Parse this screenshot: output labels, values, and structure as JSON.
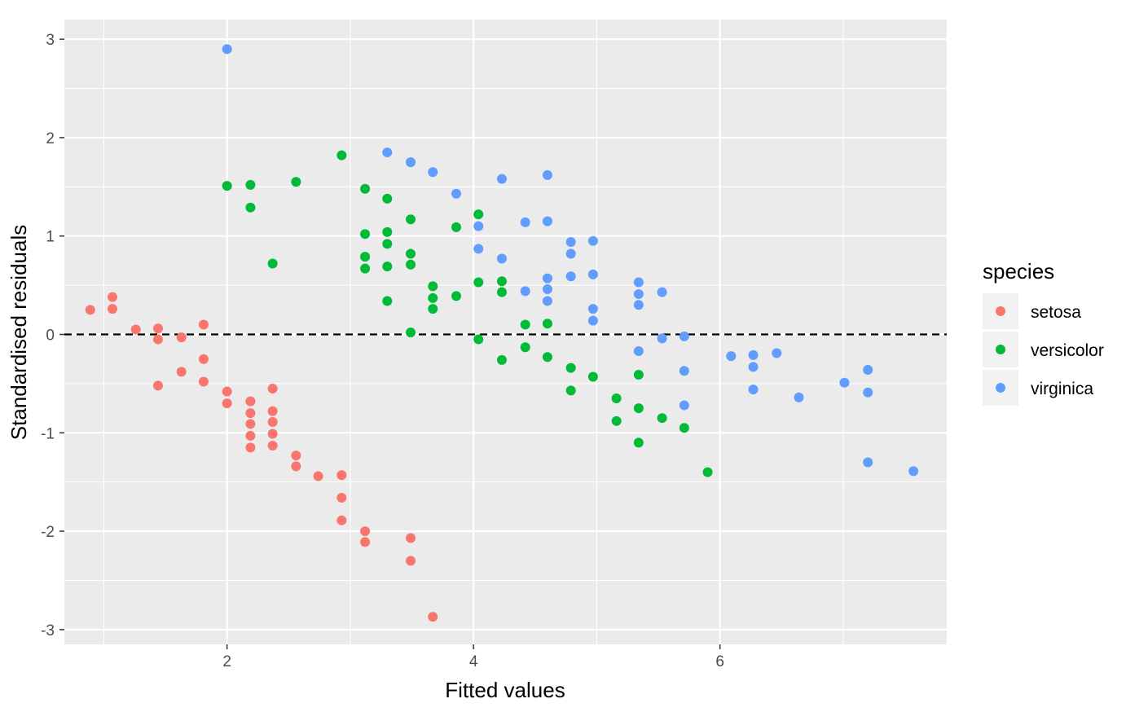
{
  "chart_data": {
    "type": "scatter",
    "title": "",
    "xlabel": "Fitted values",
    "ylabel": "Standardised residuals",
    "xlim": [
      0.68,
      7.84
    ],
    "ylim": [
      -3.15,
      3.2
    ],
    "x_ticks": [
      2,
      4,
      6
    ],
    "y_ticks": [
      -3,
      -2,
      -1,
      0,
      1,
      2,
      3
    ],
    "x_tick_labels": [
      "2",
      "4",
      "6"
    ],
    "y_tick_labels": [
      "-3",
      "-2",
      "-1",
      "0",
      "1",
      "2",
      "3"
    ],
    "grid": true,
    "background": "#ebebeb",
    "reference_line": {
      "y": 0,
      "style": "dashed",
      "color": "#000000"
    },
    "legend": {
      "title": "species",
      "placement": "right",
      "entries": [
        "setosa",
        "versicolor",
        "virginica"
      ]
    },
    "series": [
      {
        "name": "setosa",
        "color": "#f8766d",
        "points": [
          [
            0.89,
            0.25
          ],
          [
            1.07,
            0.38
          ],
          [
            1.07,
            0.26
          ],
          [
            1.26,
            0.05
          ],
          [
            1.44,
            0.06
          ],
          [
            1.44,
            -0.05
          ],
          [
            1.44,
            -0.52
          ],
          [
            1.63,
            -0.03
          ],
          [
            1.63,
            -0.38
          ],
          [
            1.81,
            0.1
          ],
          [
            1.81,
            -0.25
          ],
          [
            1.81,
            -0.48
          ],
          [
            2.0,
            -0.58
          ],
          [
            2.0,
            -0.7
          ],
          [
            2.19,
            -0.68
          ],
          [
            2.19,
            -0.8
          ],
          [
            2.19,
            -0.91
          ],
          [
            2.19,
            -1.03
          ],
          [
            2.19,
            -1.15
          ],
          [
            2.37,
            -0.55
          ],
          [
            2.37,
            -0.78
          ],
          [
            2.37,
            -0.89
          ],
          [
            2.37,
            -1.01
          ],
          [
            2.37,
            -1.13
          ],
          [
            2.56,
            -1.23
          ],
          [
            2.56,
            -1.34
          ],
          [
            2.74,
            -1.44
          ],
          [
            2.93,
            -1.43
          ],
          [
            2.93,
            -1.66
          ],
          [
            2.93,
            -1.89
          ],
          [
            3.12,
            -2.0
          ],
          [
            3.12,
            -2.11
          ],
          [
            3.49,
            -2.07
          ],
          [
            3.49,
            -2.3
          ],
          [
            3.67,
            -2.87
          ]
        ]
      },
      {
        "name": "versicolor",
        "color": "#00ba38",
        "points": [
          [
            2.0,
            1.51
          ],
          [
            2.19,
            1.52
          ],
          [
            2.19,
            1.29
          ],
          [
            2.37,
            0.72
          ],
          [
            2.56,
            1.55
          ],
          [
            2.93,
            1.82
          ],
          [
            3.12,
            1.48
          ],
          [
            3.12,
            1.02
          ],
          [
            3.12,
            0.79
          ],
          [
            3.12,
            0.67
          ],
          [
            3.3,
            1.38
          ],
          [
            3.3,
            1.04
          ],
          [
            3.3,
            0.92
          ],
          [
            3.3,
            0.69
          ],
          [
            3.3,
            0.34
          ],
          [
            3.49,
            1.17
          ],
          [
            3.49,
            0.82
          ],
          [
            3.49,
            0.71
          ],
          [
            3.49,
            0.02
          ],
          [
            3.67,
            0.49
          ],
          [
            3.67,
            0.37
          ],
          [
            3.67,
            0.26
          ],
          [
            3.86,
            1.09
          ],
          [
            3.86,
            0.39
          ],
          [
            4.04,
            1.22
          ],
          [
            4.04,
            0.53
          ],
          [
            4.04,
            -0.05
          ],
          [
            4.23,
            0.54
          ],
          [
            4.23,
            0.43
          ],
          [
            4.23,
            -0.26
          ],
          [
            4.42,
            0.1
          ],
          [
            4.42,
            -0.13
          ],
          [
            4.6,
            0.11
          ],
          [
            4.6,
            -0.23
          ],
          [
            4.79,
            -0.34
          ],
          [
            4.79,
            -0.57
          ],
          [
            4.97,
            -0.43
          ],
          [
            5.16,
            -0.65
          ],
          [
            5.16,
            -0.88
          ],
          [
            5.34,
            -0.41
          ],
          [
            5.34,
            -0.75
          ],
          [
            5.34,
            -1.1
          ],
          [
            5.53,
            -0.85
          ],
          [
            5.71,
            -0.95
          ],
          [
            5.9,
            -1.4
          ]
        ]
      },
      {
        "name": "virginica",
        "color": "#619cff",
        "points": [
          [
            2.0,
            2.9
          ],
          [
            3.3,
            1.85
          ],
          [
            3.49,
            1.75
          ],
          [
            3.67,
            1.65
          ],
          [
            3.86,
            1.43
          ],
          [
            4.04,
            1.1
          ],
          [
            4.04,
            0.87
          ],
          [
            4.23,
            1.58
          ],
          [
            4.23,
            0.77
          ],
          [
            4.42,
            1.14
          ],
          [
            4.42,
            0.44
          ],
          [
            4.6,
            1.62
          ],
          [
            4.6,
            1.15
          ],
          [
            4.6,
            0.57
          ],
          [
            4.6,
            0.46
          ],
          [
            4.6,
            0.34
          ],
          [
            4.79,
            0.94
          ],
          [
            4.79,
            0.82
          ],
          [
            4.79,
            0.59
          ],
          [
            4.97,
            0.95
          ],
          [
            4.97,
            0.61
          ],
          [
            4.97,
            0.26
          ],
          [
            4.97,
            0.14
          ],
          [
            5.34,
            0.53
          ],
          [
            5.34,
            0.41
          ],
          [
            5.34,
            0.3
          ],
          [
            5.34,
            -0.17
          ],
          [
            5.53,
            0.43
          ],
          [
            5.53,
            -0.04
          ],
          [
            5.71,
            -0.02
          ],
          [
            5.71,
            -0.37
          ],
          [
            5.71,
            -0.72
          ],
          [
            6.09,
            -0.22
          ],
          [
            6.27,
            -0.21
          ],
          [
            6.27,
            -0.33
          ],
          [
            6.27,
            -0.56
          ],
          [
            6.46,
            -0.19
          ],
          [
            6.64,
            -0.64
          ],
          [
            7.01,
            -0.49
          ],
          [
            7.2,
            -0.36
          ],
          [
            7.2,
            -0.59
          ],
          [
            7.2,
            -1.3
          ],
          [
            7.57,
            -1.39
          ]
        ]
      }
    ]
  }
}
